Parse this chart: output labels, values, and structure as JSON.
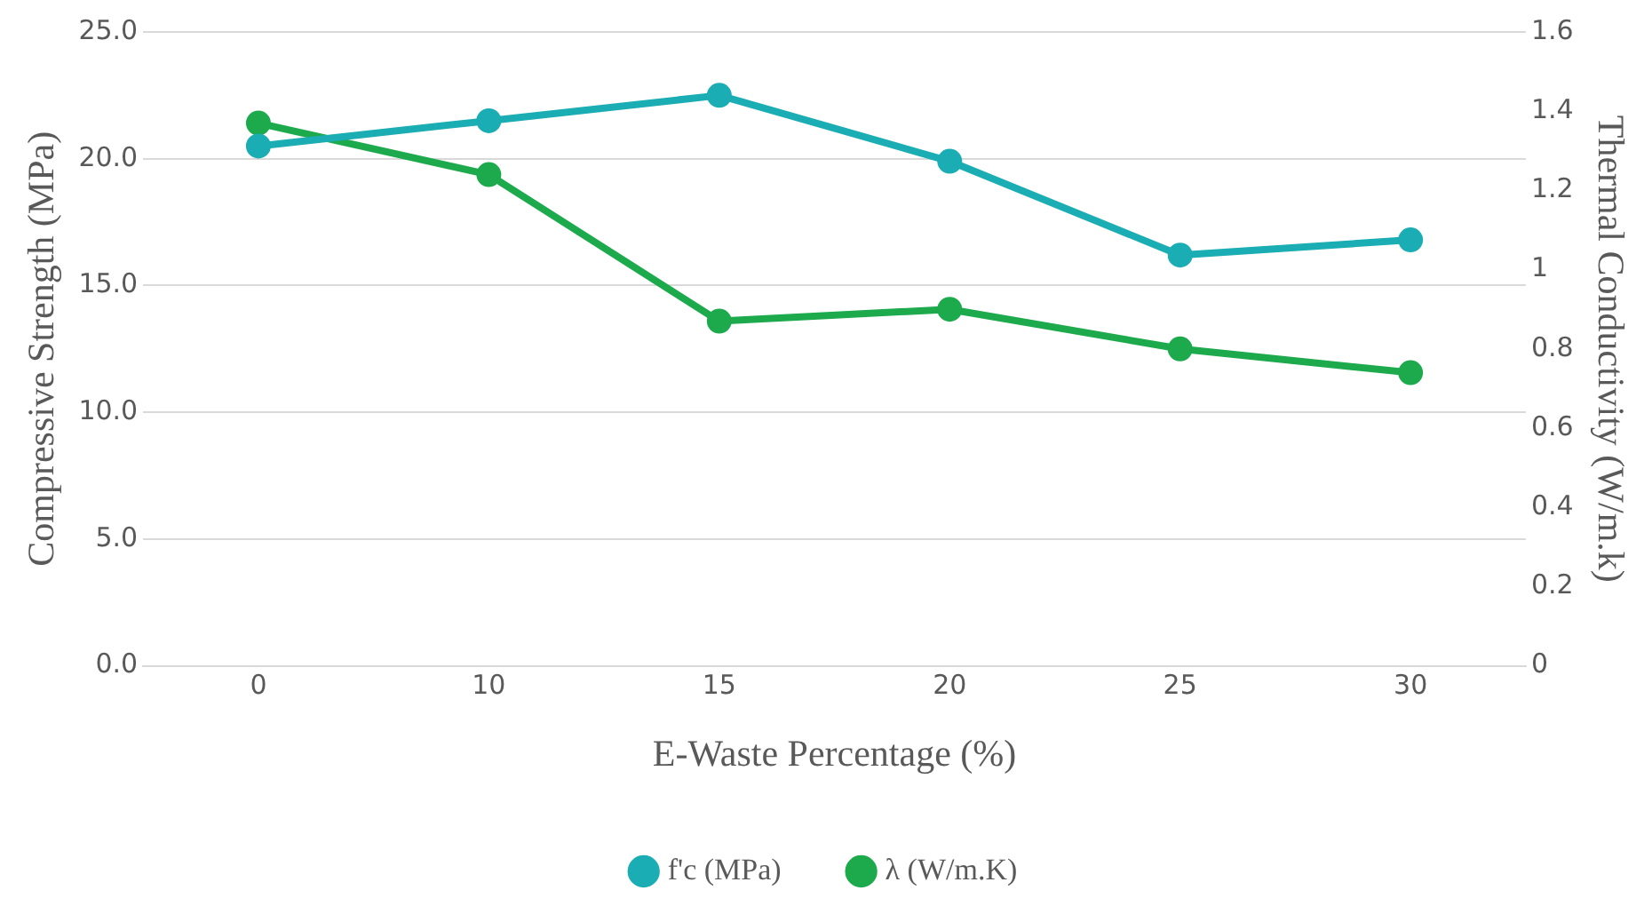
{
  "chart_data": {
    "type": "line",
    "xlabel": "E-Waste Percentage (%)",
    "ylabel": "Compressive Strength (MPa)",
    "y2label": "Thermal Conductivity (W/m.k)",
    "categories": [
      "0",
      "10",
      "15",
      "20",
      "25",
      "30"
    ],
    "series": [
      {
        "name": "f'c (MPa)",
        "color": "#1aadb3",
        "values": [
          20.5,
          21.5,
          22.5,
          19.9,
          16.2,
          16.8
        ]
      },
      {
        "name": "λ (W/m.K)",
        "color": "#1daa4c",
        "axis": "y2",
        "values": [
          1.37,
          1.24,
          0.87,
          0.9,
          0.8,
          0.74
        ]
      }
    ],
    "ylim": [
      0,
      25
    ],
    "yticks": [
      {
        "value": 0,
        "label": "0.0"
      },
      {
        "value": 5,
        "label": "5.0"
      },
      {
        "value": 10,
        "label": "10.0"
      },
      {
        "value": 15,
        "label": "15.0"
      },
      {
        "value": 20,
        "label": "20.0"
      },
      {
        "value": 25,
        "label": "25.0"
      }
    ],
    "y2lim": [
      0,
      1.6
    ],
    "y2ticks": [
      0,
      0.2,
      0.4,
      0.6,
      0.8,
      1,
      1.2,
      1.4,
      1.6
    ],
    "grid": "y",
    "legend": "bottom",
    "marker": "circle",
    "line_style": "solid"
  }
}
